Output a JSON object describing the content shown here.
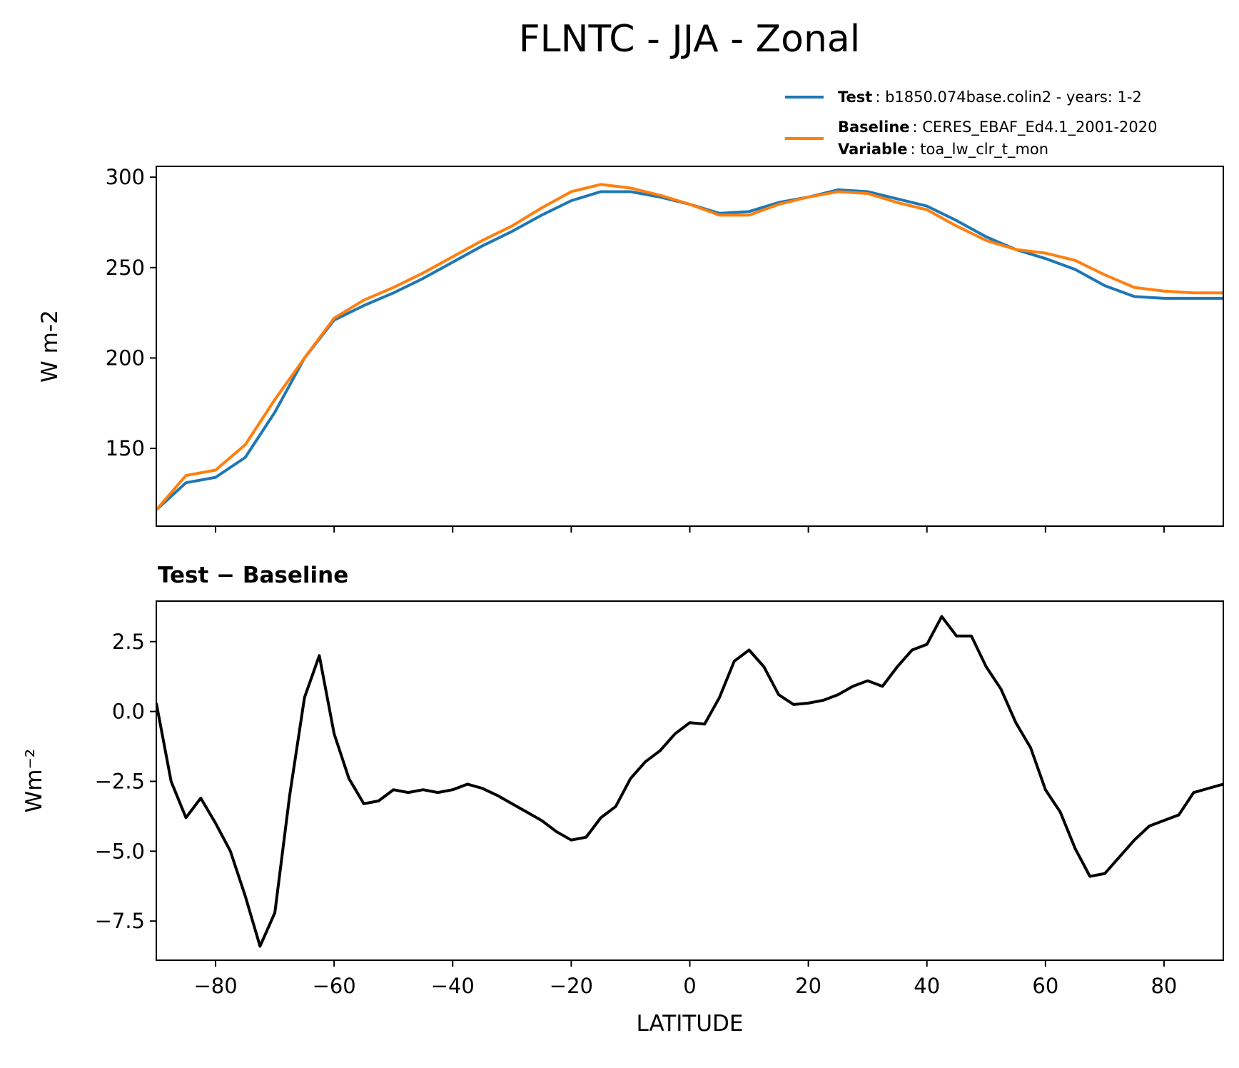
{
  "chart_data": [
    {
      "type": "line",
      "title": "FLNTC - JJA - Zonal",
      "ylabel": "W m-2",
      "x": [
        -90,
        -85,
        -80,
        -75,
        -70,
        -65,
        -60,
        -55,
        -50,
        -45,
        -40,
        -35,
        -30,
        -25,
        -20,
        -15,
        -10,
        -5,
        0,
        5,
        10,
        15,
        20,
        25,
        30,
        35,
        40,
        45,
        50,
        55,
        60,
        65,
        70,
        75,
        80,
        85,
        90
      ],
      "xlim": [
        -90,
        90
      ],
      "ylim": [
        107,
        306
      ],
      "yticks": [
        150,
        200,
        250,
        300
      ],
      "series": [
        {
          "name": "Test",
          "description": ": b1850.074base.colin2 - years: 1-2",
          "color": "#1f77b4",
          "values": [
            116,
            131,
            134,
            145,
            170,
            200,
            221,
            229,
            236,
            244,
            253,
            262,
            270,
            279,
            287,
            292,
            292,
            289,
            285,
            280,
            281,
            286,
            289,
            293,
            292,
            288,
            284,
            276,
            267,
            260,
            255,
            249,
            240,
            234,
            233,
            233,
            233
          ]
        },
        {
          "name": "Baseline",
          "description": ": CERES_EBAF_Ed4.1_2001-2020",
          "color": "#ff7f0e",
          "values": [
            116,
            135,
            138,
            152,
            177,
            200,
            222,
            232,
            239,
            247,
            256,
            265,
            273,
            283,
            292,
            296,
            294,
            290,
            285,
            279,
            279,
            285,
            289,
            292,
            291,
            286,
            282,
            273,
            265,
            260,
            258,
            254,
            246,
            239,
            237,
            236,
            236
          ]
        }
      ],
      "legend_variable": {
        "label": "Variable",
        "value": ": toa_lw_clr_t_mon"
      }
    },
    {
      "type": "line",
      "title": "Test − Baseline",
      "xlabel": "LATITUDE",
      "ylabel": "Wm⁻²",
      "color": "#000000",
      "x": [
        -90,
        -87.5,
        -85,
        -82.5,
        -80,
        -77.5,
        -75,
        -72.5,
        -70,
        -67.5,
        -65,
        -62.5,
        -60,
        -57.5,
        -55,
        -52.5,
        -50,
        -47.5,
        -45,
        -42.5,
        -40,
        -37.5,
        -35,
        -32.5,
        -30,
        -27.5,
        -25,
        -22.5,
        -20,
        -17.5,
        -15,
        -12.5,
        -10,
        -7.5,
        -5,
        -2.5,
        0,
        2.5,
        5,
        7.5,
        10,
        12.5,
        15,
        17.5,
        20,
        22.5,
        25,
        27.5,
        30,
        32.5,
        35,
        37.5,
        40,
        42.5,
        45,
        47.5,
        50,
        52.5,
        55,
        57.5,
        60,
        62.5,
        65,
        67.5,
        70,
        72.5,
        75,
        77.5,
        80,
        82.5,
        85,
        87.5,
        90
      ],
      "values": [
        0.3,
        -2.5,
        -3.8,
        -3.1,
        -4.0,
        -5.0,
        -6.6,
        -8.4,
        -7.2,
        -3.0,
        0.5,
        2.0,
        -0.8,
        -2.4,
        -3.3,
        -3.2,
        -2.8,
        -2.9,
        -2.8,
        -2.9,
        -2.8,
        -2.6,
        -2.75,
        -3.0,
        -3.3,
        -3.6,
        -3.9,
        -4.3,
        -4.6,
        -4.5,
        -3.8,
        -3.4,
        -2.4,
        -1.8,
        -1.4,
        -0.8,
        -0.4,
        -0.45,
        0.5,
        1.8,
        2.2,
        1.6,
        0.6,
        0.25,
        0.3,
        0.4,
        0.6,
        0.9,
        1.1,
        0.9,
        1.6,
        2.2,
        2.4,
        3.4,
        2.7,
        2.7,
        1.6,
        0.8,
        -0.4,
        -1.3,
        -2.8,
        -3.6,
        -4.9,
        -5.9,
        -5.8,
        -5.2,
        -4.6,
        -4.1,
        -3.9,
        -3.7,
        -2.9,
        -2.75,
        -2.6
      ],
      "xlim": [
        -90,
        90
      ],
      "ylim": [
        -8.9,
        3.95
      ],
      "xticks": [
        {
          "value": -80,
          "label": "−80"
        },
        {
          "value": -60,
          "label": "−60"
        },
        {
          "value": -40,
          "label": "−40"
        },
        {
          "value": -20,
          "label": "−20"
        },
        0,
        20,
        40,
        60,
        80
      ],
      "yticks": [
        {
          "value": 2.5,
          "label": "2.5"
        },
        {
          "value": 0,
          "label": "0.0"
        },
        {
          "value": -2.5,
          "label": "−2.5"
        },
        {
          "value": -5,
          "label": "−5.0"
        },
        {
          "value": -7.5,
          "label": "−7.5"
        }
      ]
    }
  ]
}
